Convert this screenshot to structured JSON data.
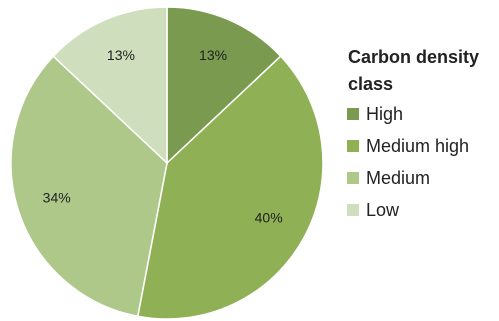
{
  "chart_data": {
    "type": "pie",
    "title": "",
    "legend": {
      "title": "Carbon density class",
      "placement": "right"
    },
    "slices": [
      {
        "name": "High",
        "value": 13,
        "label": "13%",
        "color": "#7a9a4f"
      },
      {
        "name": "Medium high",
        "value": 40,
        "label": "40%",
        "color": "#8fb054"
      },
      {
        "name": "Medium",
        "value": 34,
        "label": "34%",
        "color": "#aec88a"
      },
      {
        "name": "Low",
        "value": 13,
        "label": "13%",
        "color": "#cfdfbd"
      }
    ],
    "start_angle_deg": 0,
    "direction": "clockwise"
  }
}
